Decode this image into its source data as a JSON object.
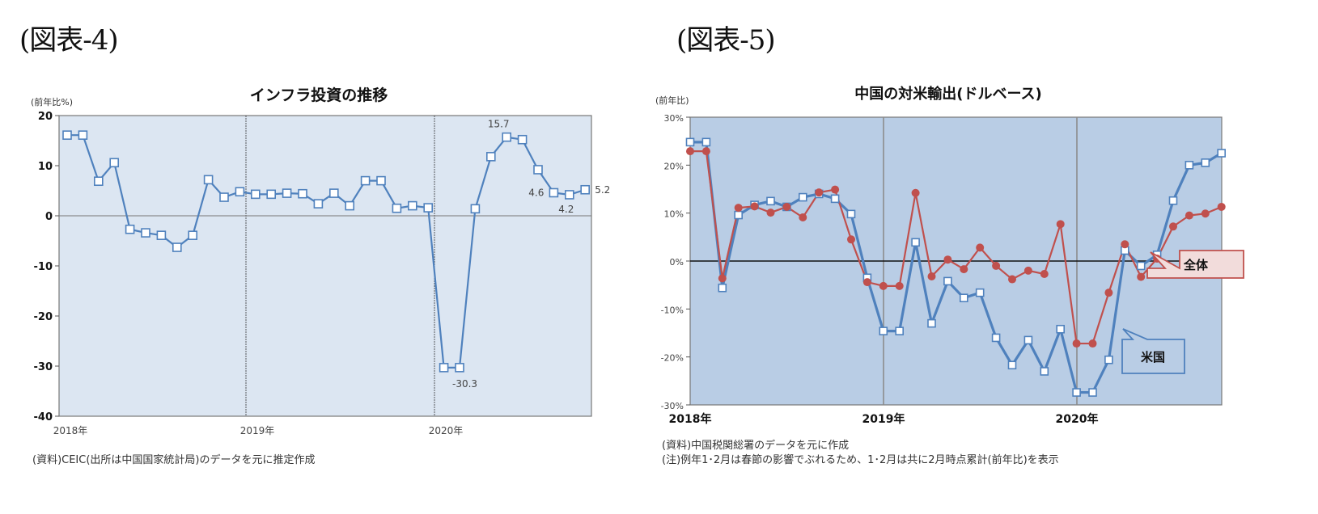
{
  "figures": [
    {
      "label": "(図表-4)"
    },
    {
      "label": "(図表-5)"
    }
  ],
  "chart_data": [
    {
      "type": "line",
      "title": "インフラ投資の推移",
      "ylabel": "(前年比%)",
      "xlabel": "",
      "ylim": [
        -40,
        20
      ],
      "yticks": [
        20,
        10,
        0,
        -10,
        -20,
        -30,
        -40
      ],
      "ytick_labels": [
        "20",
        "10",
        "0",
        "-10",
        "-20",
        "-30",
        "-40"
      ],
      "year_labels": [
        "2018年",
        "2019年",
        "2020年"
      ],
      "grid": "vertical dashed year separators",
      "background": "#dce6f2",
      "x": [
        "2018-01",
        "2018-02",
        "2018-03",
        "2018-04",
        "2018-05",
        "2018-06",
        "2018-07",
        "2018-08",
        "2018-09",
        "2018-10",
        "2018-11",
        "2018-12",
        "2019-01",
        "2019-02",
        "2019-03",
        "2019-04",
        "2019-05",
        "2019-06",
        "2019-07",
        "2019-08",
        "2019-09",
        "2019-10",
        "2019-11",
        "2019-12",
        "2020-01",
        "2020-02",
        "2020-03",
        "2020-04",
        "2020-05",
        "2020-06",
        "2020-07",
        "2020-08",
        "2020-09",
        "2020-10"
      ],
      "series": [
        {
          "name": "インフラ投資",
          "color": "#4f81bd",
          "marker": "square",
          "values": [
            16.1,
            16.1,
            6.9,
            10.6,
            -2.7,
            -3.4,
            -3.9,
            -6.3,
            -3.9,
            7.2,
            3.7,
            4.8,
            4.3,
            4.3,
            4.5,
            4.4,
            2.4,
            4.5,
            2.0,
            7.0,
            7.0,
            1.5,
            2.0,
            1.6,
            -30.3,
            -30.3,
            1.4,
            11.8,
            15.7,
            15.2,
            9.2,
            4.6,
            4.2,
            5.2
          ]
        }
      ],
      "annotations": [
        {
          "text": "15.7",
          "index": 28
        },
        {
          "text": "-30.3",
          "index": 25
        },
        {
          "text": "4.6",
          "index": 31
        },
        {
          "text": "4.2",
          "index": 32
        },
        {
          "text": "5.2",
          "index": 33
        }
      ],
      "source_note": "(資料)CEIC(出所は中国国家統計局)のデータを元に推定作成"
    },
    {
      "type": "line",
      "title": "中国の対米輸出(ドルベース)",
      "ylabel": "(前年比)",
      "xlabel": "",
      "ylim": [
        -30,
        30
      ],
      "yticks": [
        30,
        20,
        10,
        0,
        -10,
        -20,
        -30
      ],
      "ytick_labels": [
        "30%",
        "20%",
        "10%",
        "0%",
        "-10%",
        "-20%",
        "-30%"
      ],
      "year_labels": [
        "2018年",
        "2019年",
        "2020年"
      ],
      "grid": "vertical solid year separators",
      "background": "#b9cde5",
      "x": [
        "2018-01",
        "2018-02",
        "2018-03",
        "2018-04",
        "2018-05",
        "2018-06",
        "2018-07",
        "2018-08",
        "2018-09",
        "2018-10",
        "2018-11",
        "2018-12",
        "2019-01",
        "2019-02",
        "2019-03",
        "2019-04",
        "2019-05",
        "2019-06",
        "2019-07",
        "2019-08",
        "2019-09",
        "2019-10",
        "2019-11",
        "2019-12",
        "2020-01",
        "2020-02",
        "2020-03",
        "2020-04",
        "2020-05",
        "2020-06",
        "2020-07",
        "2020-08",
        "2020-09",
        "2020-10"
      ],
      "series": [
        {
          "name": "米国",
          "color": "#4f81bd",
          "marker": "square",
          "values": [
            24.8,
            24.8,
            -5.6,
            9.6,
            11.7,
            12.5,
            11.3,
            13.3,
            14.0,
            13.0,
            9.8,
            -3.5,
            -14.6,
            -14.6,
            3.9,
            -13.0,
            -4.2,
            -7.7,
            -6.6,
            -16.0,
            -21.7,
            -16.5,
            -23.0,
            -14.2,
            -27.4,
            -27.4,
            -20.6,
            2.2,
            -1.0,
            1.3,
            12.6,
            20.0,
            20.5,
            22.5
          ]
        },
        {
          "name": "全体",
          "color": "#c0504d",
          "marker": "circle",
          "values": [
            22.9,
            22.9,
            -3.6,
            11.1,
            11.4,
            10.1,
            11.3,
            9.1,
            14.3,
            14.9,
            4.5,
            -4.4,
            -5.2,
            -5.2,
            14.2,
            -3.2,
            0.3,
            -1.7,
            2.8,
            -1.0,
            -3.8,
            -2.0,
            -2.7,
            7.7,
            -17.2,
            -17.2,
            -6.6,
            3.5,
            -3.3,
            0.5,
            7.2,
            9.5,
            9.9,
            11.3
          ]
        }
      ],
      "callouts": [
        {
          "text": "全体",
          "fill": "#f2dcdb",
          "border": "#c0504d"
        },
        {
          "text": "米国",
          "fill": "#b9cde5",
          "border": "#4f81bd"
        }
      ],
      "source_note": "(資料)中国税関総署のデータを元に作成",
      "footnote": "(注)例年1･2月は春節の影響でぶれるため、1･2月は共に2月時点累計(前年比)を表示"
    }
  ]
}
